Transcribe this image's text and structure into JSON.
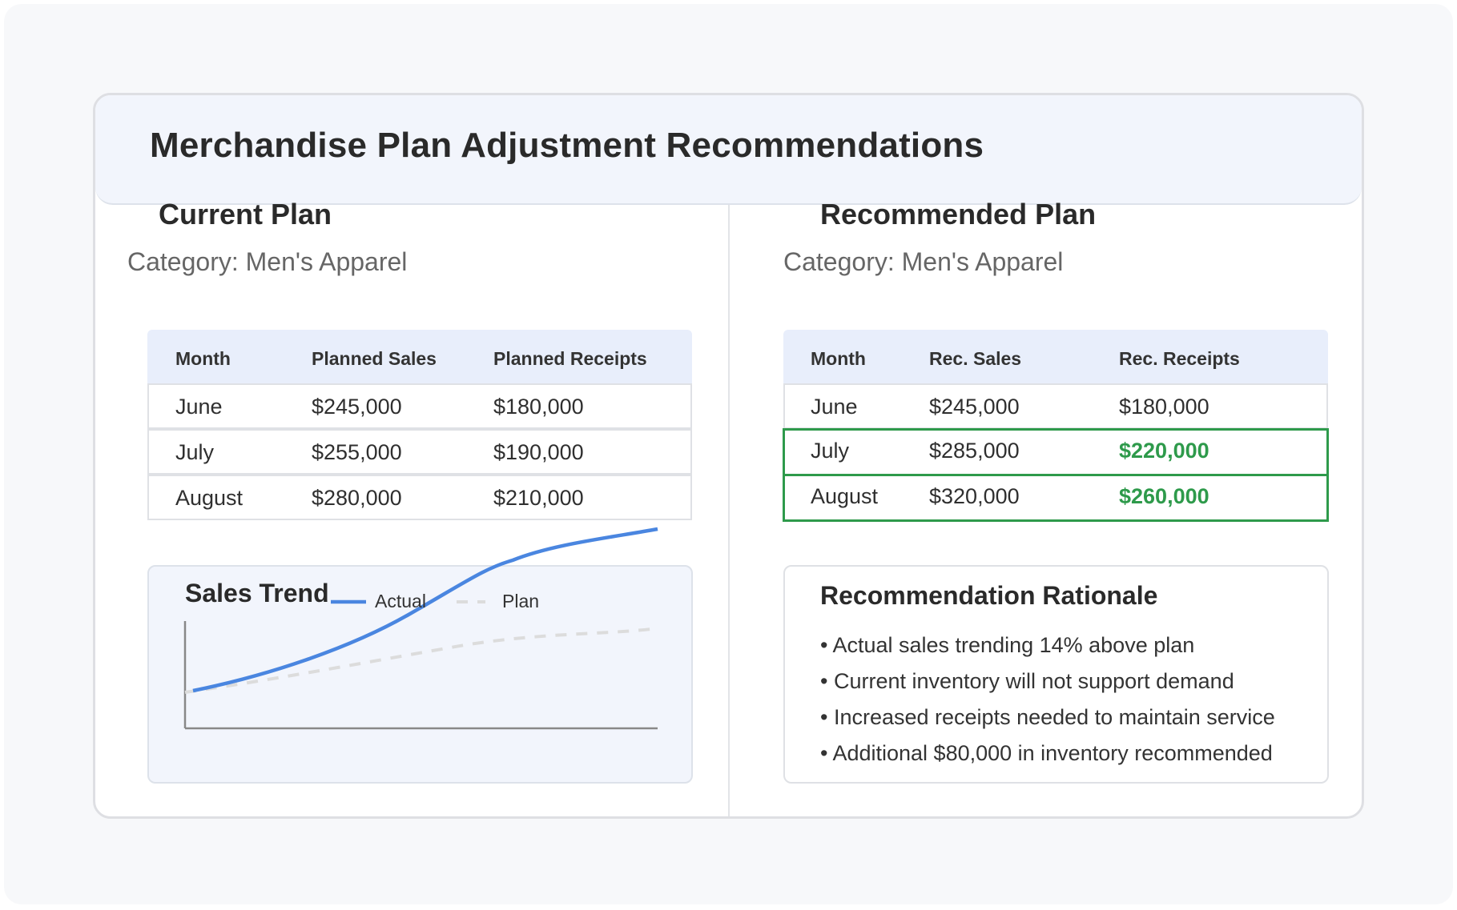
{
  "title": "Merchandise Plan Adjustment Recommendations",
  "current_plan": {
    "heading": "Current Plan",
    "category": "Category: Men's Apparel",
    "columns": [
      "Month",
      "Planned Sales",
      "Planned Receipts"
    ],
    "rows": [
      {
        "month": "June",
        "sales": "$245,000",
        "receipts": "$180,000"
      },
      {
        "month": "July",
        "sales": "$255,000",
        "receipts": "$190,000"
      },
      {
        "month": "August",
        "sales": "$280,000",
        "receipts": "$210,000"
      }
    ]
  },
  "recommended_plan": {
    "heading": "Recommended Plan",
    "category": "Category: Men's Apparel",
    "columns": [
      "Month",
      "Rec. Sales",
      "Rec. Receipts"
    ],
    "rows": [
      {
        "month": "June",
        "sales": "$245,000",
        "receipts": "$180,000",
        "highlighted": false
      },
      {
        "month": "July",
        "sales": "$285,000",
        "receipts": "$220,000",
        "highlighted": true
      },
      {
        "month": "August",
        "sales": "$320,000",
        "receipts": "$260,000",
        "highlighted": true
      }
    ],
    "highlight_color": "#2e9a4b"
  },
  "sales_trend": {
    "title": "Sales Trend",
    "legend": {
      "actual": "Actual",
      "plan": "Plan"
    },
    "colors": {
      "actual": "#4a86e0",
      "plan": "#dcdcdc",
      "axis": "#888888"
    }
  },
  "rationale": {
    "title": "Recommendation Rationale",
    "bullets": [
      "• Actual sales trending 14% above plan",
      "• Current inventory will not support demand",
      "• Increased receipts needed to maintain service",
      "• Additional $80,000 in inventory recommended"
    ]
  },
  "colors": {
    "accent_green": "#2e9a4b",
    "header_bg": "#f2f5fc",
    "table_header_bg": "#e8eefb",
    "actual_line": "#4a86e0"
  }
}
